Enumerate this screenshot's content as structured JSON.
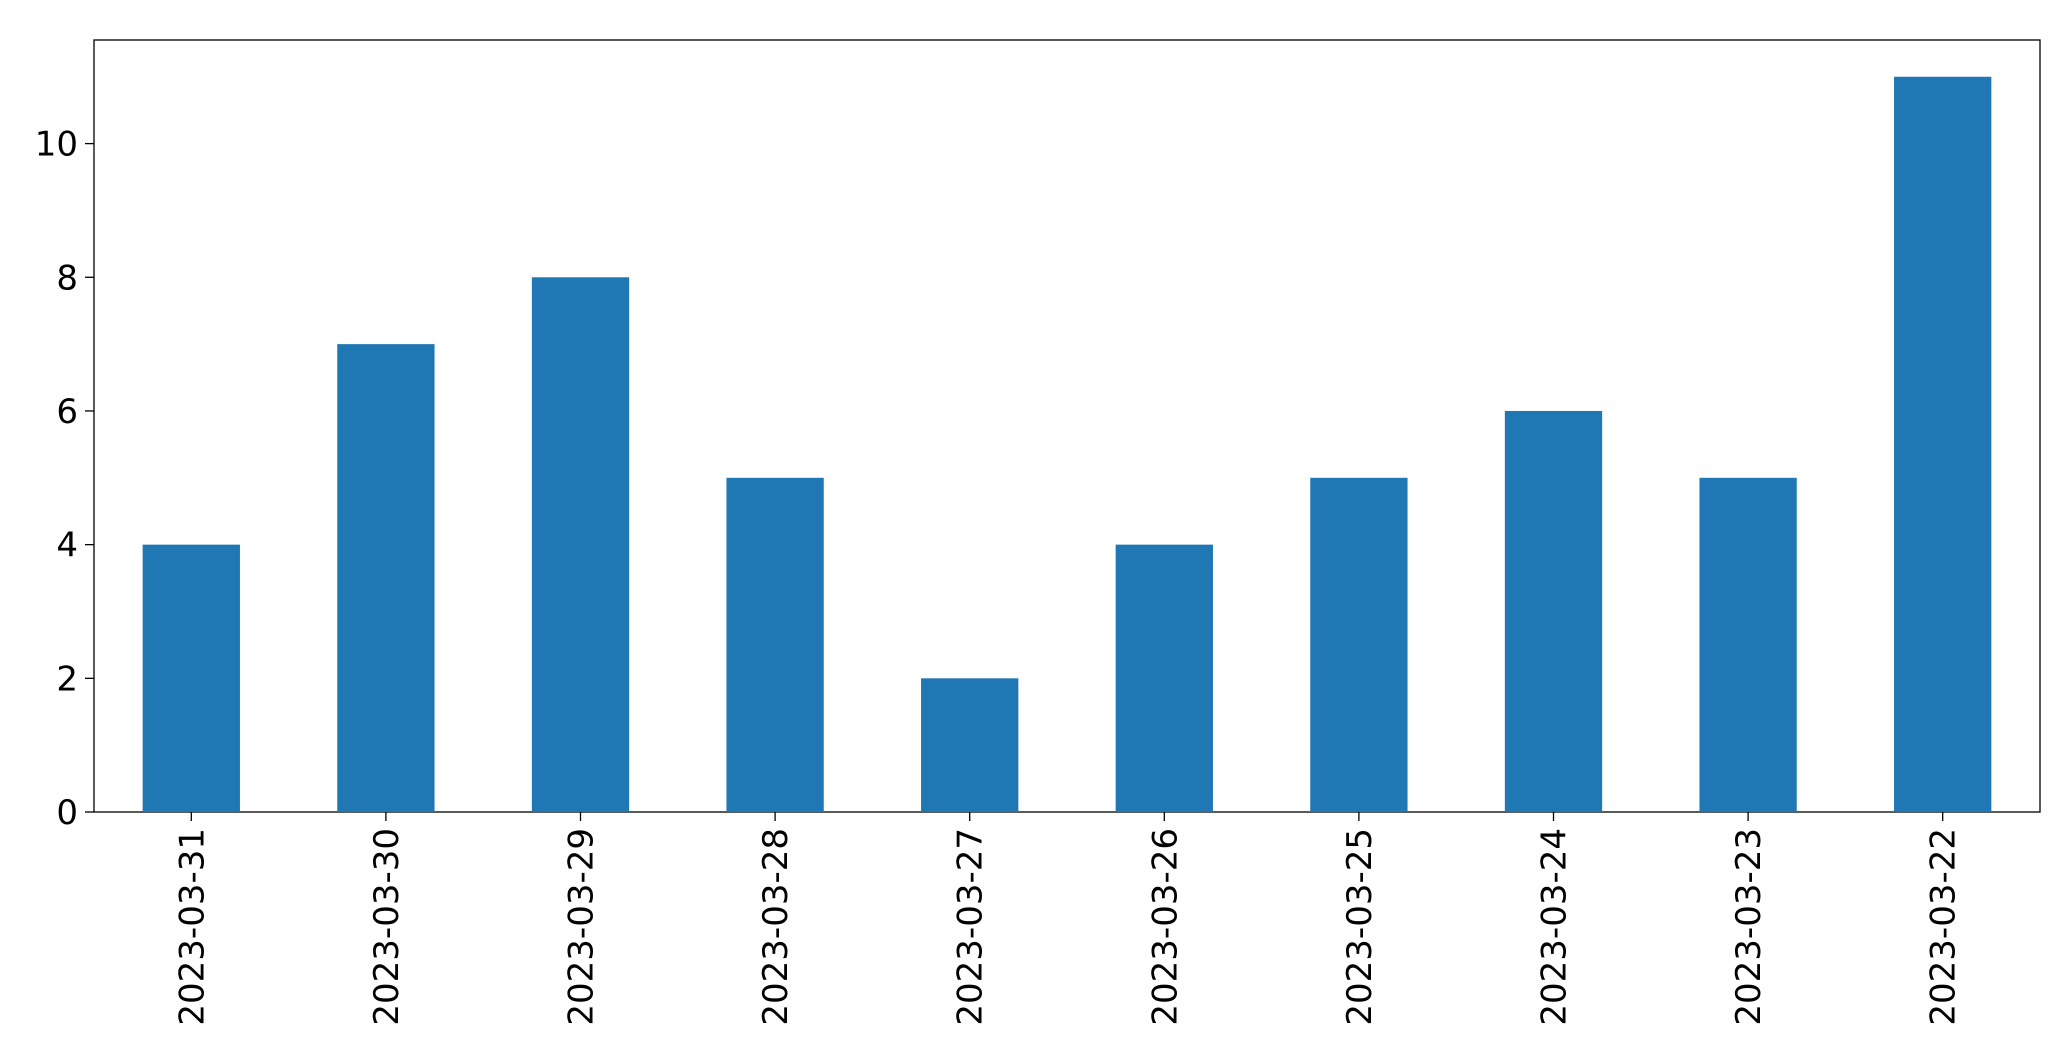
{
  "chart_data": {
    "type": "bar",
    "categories": [
      "2023-03-31",
      "2023-03-30",
      "2023-03-29",
      "2023-03-28",
      "2023-03-27",
      "2023-03-26",
      "2023-03-25",
      "2023-03-24",
      "2023-03-23",
      "2023-03-22"
    ],
    "values": [
      4,
      7,
      8,
      5,
      2,
      4,
      5,
      6,
      5,
      11
    ],
    "color": "#1f77b4",
    "ylim": [
      0,
      11.55
    ],
    "yticks": [
      0,
      2,
      4,
      6,
      8,
      10
    ],
    "grid": false
  }
}
